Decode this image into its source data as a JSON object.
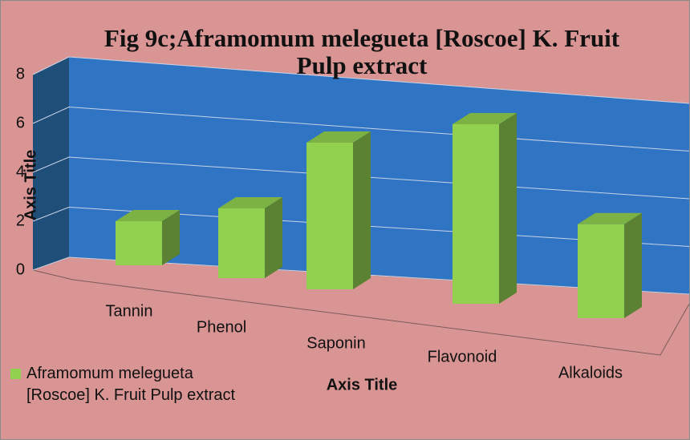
{
  "chart_data": {
    "type": "bar3d",
    "title": "Fig 9c;Aframomum melegueta [Roscoe] K. Fruit Pulp extract",
    "x_label": "Axis Title",
    "y_label": "Axis Title",
    "categories": [
      "Tannin",
      "Phenol",
      "Saponin",
      "Flavonoid",
      "Alkaloids"
    ],
    "series": [
      {
        "name": "Aframomum melegueta [Roscoe] K. Fruit Pulp extract",
        "color": "#92d050",
        "values": [
          2,
          3,
          6,
          7,
          3.5
        ]
      }
    ],
    "ylim": [
      0,
      8
    ],
    "yticks": [
      0,
      2,
      4,
      6,
      8
    ],
    "grid": true,
    "legend": "bottom-left"
  }
}
